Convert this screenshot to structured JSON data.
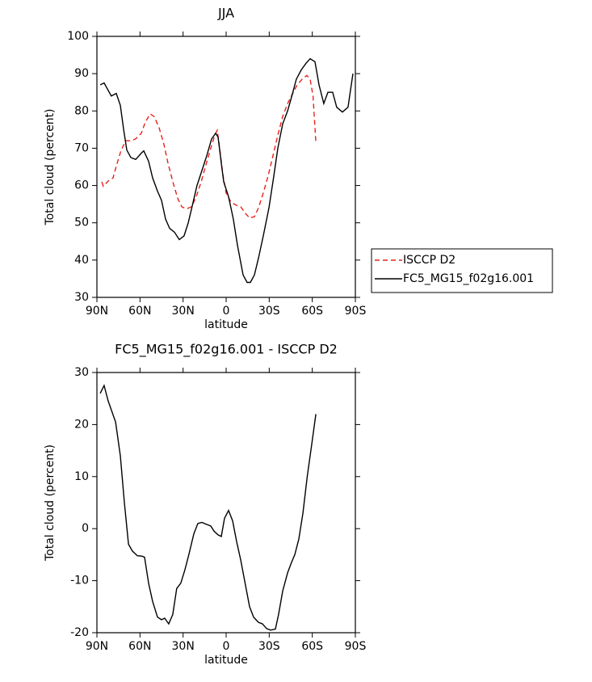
{
  "chart_data": [
    {
      "type": "line",
      "title": "JJA",
      "xlabel": "latitude",
      "ylabel": "Total cloud (percent)",
      "xlim": [
        90,
        -90
      ],
      "xticks": [
        {
          "value": 90,
          "label": "90N"
        },
        {
          "value": 60,
          "label": "60N"
        },
        {
          "value": 30,
          "label": "30N"
        },
        0,
        {
          "value": -30,
          "label": "30S"
        },
        {
          "value": -60,
          "label": "60S"
        },
        {
          "value": -90,
          "label": "90S"
        }
      ],
      "ylim": [
        30,
        100
      ],
      "yticks": [
        30,
        40,
        50,
        60,
        70,
        80,
        90,
        100
      ],
      "legend": "right",
      "series": [
        {
          "name": "ISCCP D2",
          "color": "#e8201c",
          "dash": true,
          "x": [
            86.6,
            85.5,
            82.1,
            78.8,
            75.9,
            73.1,
            69.8,
            66.4,
            63,
            59.1,
            56.3,
            52.9,
            50.1,
            46.7,
            43.3,
            40.5,
            37.1,
            33.7,
            30.9,
            27.6,
            24.2,
            20.8,
            17.4,
            14.1,
            10.7,
            7.9,
            6.2,
            4.5,
            2.3,
            0,
            -3.4,
            -6.7,
            -10.1,
            -13.5,
            -16.3,
            -19.7,
            -22.5,
            -25.9,
            -29.2,
            -32.6,
            -36,
            -39.4,
            -42.8,
            -46.1,
            -49.5,
            -52.9,
            -56.2,
            -58.5,
            -60.5,
            -62.5
          ],
          "values": [
            61,
            59.8,
            61.2,
            62,
            66,
            69.5,
            72,
            72,
            72.5,
            74,
            77,
            79.2,
            78.5,
            75.5,
            71,
            66,
            61,
            56.5,
            54.3,
            53.7,
            54.3,
            57,
            61,
            65.5,
            70,
            73.5,
            74.8,
            70,
            63,
            58,
            55.5,
            54.8,
            54.3,
            52.5,
            51.3,
            51.6,
            54,
            58,
            62.5,
            68,
            73.5,
            78.5,
            82,
            84.5,
            87,
            88.5,
            89.5,
            88.5,
            84,
            71.5
          ]
        },
        {
          "name": "FC5_MG15_f02g16.001",
          "color": "#000000",
          "dash": false,
          "x": [
            87.7,
            85,
            80,
            76.5,
            73.7,
            71.4,
            69.2,
            66.4,
            63,
            59,
            57.4,
            54,
            51.2,
            47.8,
            45,
            42.2,
            39.4,
            36,
            32.6,
            29.3,
            26.4,
            23,
            20.3,
            16.9,
            13.5,
            10.1,
            7.3,
            5.6,
            3.4,
            1.7,
            -1.7,
            -5,
            -7.9,
            -11.8,
            -14.6,
            -16.9,
            -19.7,
            -22.5,
            -25.9,
            -29.8,
            -33.2,
            -36,
            -39.4,
            -42.8,
            -46.1,
            -48.9,
            -52.3,
            -55.7,
            -58.5,
            -61.9,
            -64.7,
            -68,
            -70.9,
            -74.2,
            -77,
            -81,
            -84.9,
            -88.3
          ],
          "values": [
            87,
            87.5,
            84,
            84.7,
            81.5,
            75,
            69.5,
            67.5,
            67,
            68.7,
            69.3,
            66.5,
            62,
            58.5,
            56,
            51,
            48.5,
            47.5,
            45.5,
            46.5,
            50,
            55.5,
            60,
            64,
            68,
            72.5,
            74,
            73,
            66,
            61,
            57,
            51,
            44,
            36,
            34,
            34,
            36,
            40.5,
            46.5,
            54,
            62.5,
            70,
            76.5,
            80,
            84.5,
            88.5,
            91,
            92.8,
            94,
            93.2,
            87,
            82,
            85,
            85,
            81,
            79.7,
            81,
            90
          ]
        }
      ]
    },
    {
      "type": "line",
      "title": "FC5_MG15_f02g16.001 - ISCCP D2",
      "xlabel": "latitude",
      "ylabel": "Total cloud (percent)",
      "xlim": [
        90,
        -90
      ],
      "xticks": [
        {
          "value": 90,
          "label": "90N"
        },
        {
          "value": 60,
          "label": "60N"
        },
        {
          "value": 30,
          "label": "30N"
        },
        0,
        {
          "value": -30,
          "label": "30S"
        },
        {
          "value": -60,
          "label": "60S"
        },
        {
          "value": -90,
          "label": "90S"
        }
      ],
      "ylim": [
        -20,
        30
      ],
      "yticks": [
        -20,
        -10,
        0,
        10,
        20,
        30
      ],
      "series": [
        {
          "color": "#000000",
          "dash": false,
          "x": [
            87.7,
            85,
            82.1,
            77,
            73.7,
            70.9,
            68,
            65.3,
            61.9,
            58.5,
            56.8,
            54,
            51.2,
            47.8,
            45,
            42.8,
            40,
            37.2,
            34.4,
            31.6,
            28.8,
            26,
            22.5,
            19.7,
            16.9,
            13.5,
            10.7,
            8.4,
            5.6,
            3.4,
            1.1,
            -1.7,
            -4.5,
            -7.3,
            -10.1,
            -12.9,
            -16.3,
            -19.1,
            -22.5,
            -25.3,
            -28.1,
            -30.9,
            -34.3,
            -36.5,
            -39.4,
            -42.8,
            -45.5,
            -47.8,
            -50.6,
            -53.5,
            -56.5,
            -59.5,
            -62.5
          ],
          "values": [
            26,
            27.5,
            24.5,
            20.5,
            14,
            5,
            -3,
            -4.3,
            -5.2,
            -5.3,
            -5.5,
            -10.5,
            -14,
            -17,
            -17.5,
            -17.2,
            -18.3,
            -16.5,
            -11.5,
            -10.5,
            -8,
            -5,
            -1,
            1,
            1.2,
            0.8,
            0.5,
            -0.5,
            -1.2,
            -1.5,
            2,
            3.5,
            1.5,
            -2.5,
            -6,
            -10,
            -15,
            -17,
            -18,
            -18.3,
            -19.2,
            -19.5,
            -19.3,
            -16.5,
            -12,
            -8.5,
            -6.5,
            -5,
            -2,
            3,
            10,
            16,
            22
          ]
        }
      ]
    }
  ]
}
